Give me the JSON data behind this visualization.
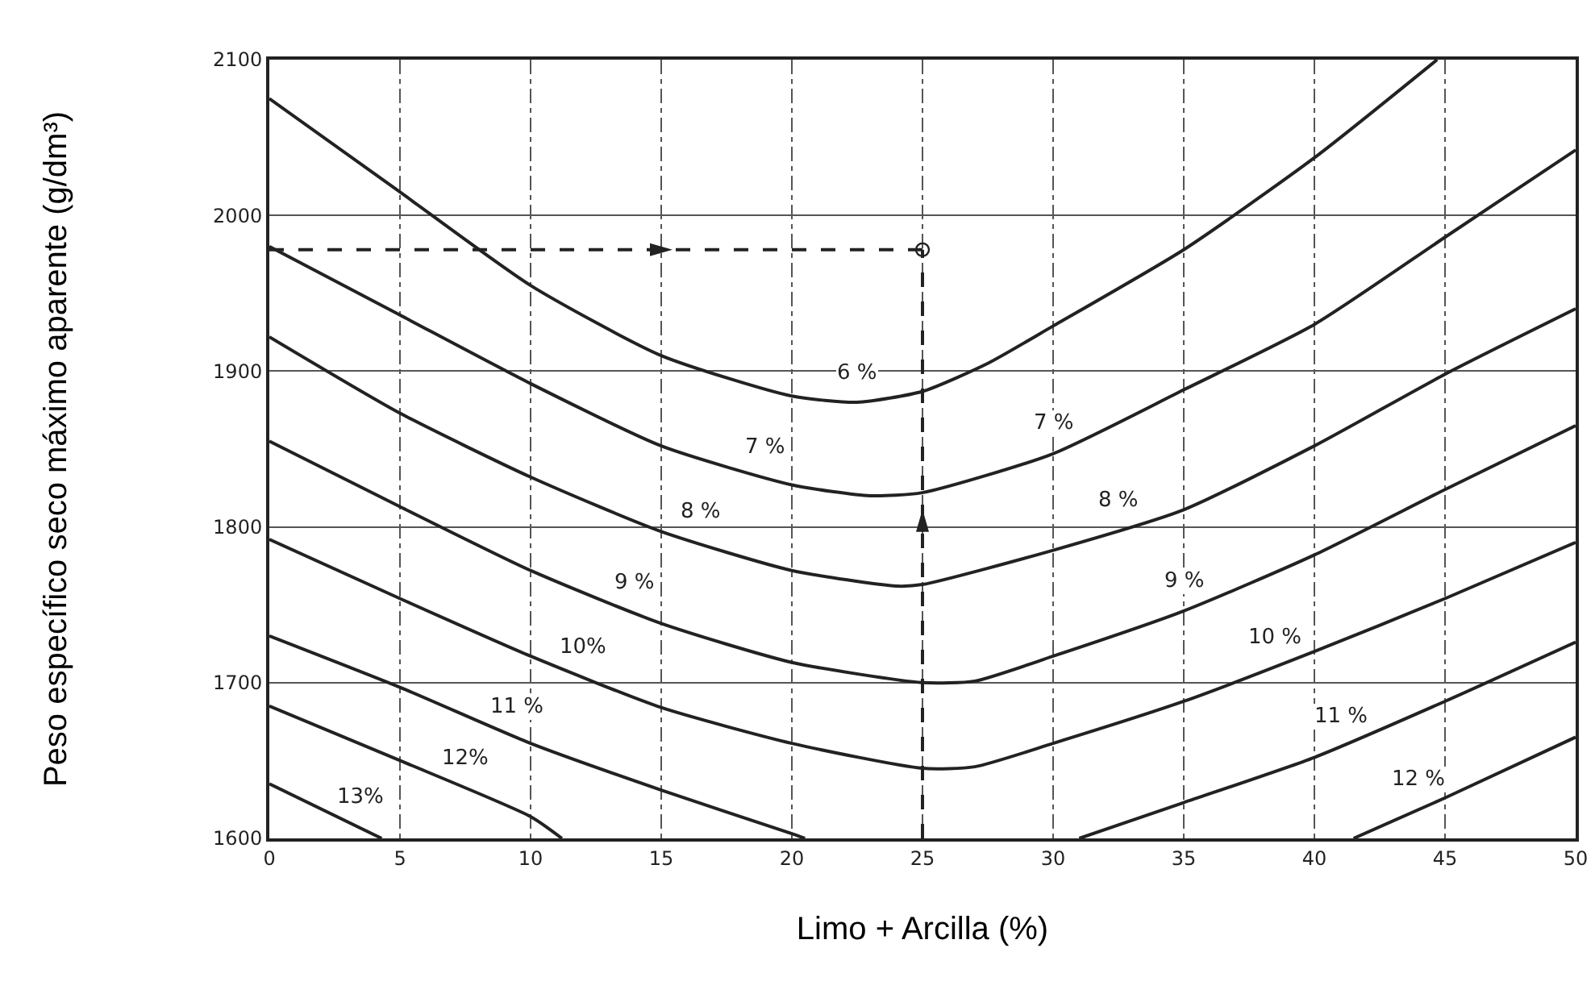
{
  "chart_data": {
    "type": "line",
    "xlabel": "Limo + Arcilla (%)",
    "ylabel": "Peso específico seco máximo aparente (g/dm³)",
    "xlim": [
      0,
      50
    ],
    "ylim": [
      1600,
      2100
    ],
    "xticks": [
      0,
      5,
      10,
      15,
      20,
      25,
      30,
      35,
      40,
      45,
      50
    ],
    "yticks": [
      1600,
      1700,
      1800,
      1900,
      2000,
      2100
    ],
    "grid": true,
    "marker": "none",
    "line_style": "solid",
    "series": [
      {
        "color": "#222222",
        "x": [
          0,
          5,
          10,
          15,
          20,
          22.5,
          25,
          27.5,
          30,
          35,
          40,
          44.7
        ],
        "values": [
          2075,
          2015,
          1955,
          1910,
          1884,
          1880,
          1887,
          1905,
          1929,
          1978,
          2037,
          2100
        ]
      },
      {
        "color": "#222222",
        "x": [
          0,
          5,
          10,
          15,
          20,
          23,
          25,
          30,
          35,
          40,
          45,
          50
        ],
        "values": [
          1980,
          1936,
          1892,
          1852,
          1827,
          1820,
          1822,
          1847,
          1888,
          1930,
          1986,
          2042
        ]
      },
      {
        "color": "#222222",
        "x": [
          0,
          5,
          10,
          15,
          20,
          24,
          25,
          30,
          35,
          40,
          45,
          50
        ],
        "values": [
          1922,
          1873,
          1832,
          1797,
          1772,
          1762,
          1763,
          1785,
          1811,
          1852,
          1898,
          1940
        ]
      },
      {
        "color": "#222222",
        "x": [
          0,
          5,
          10,
          15,
          20,
          25,
          27,
          30,
          35,
          40,
          45,
          50
        ],
        "values": [
          1855,
          1813,
          1772,
          1738,
          1713,
          1700,
          1701,
          1717,
          1746,
          1782,
          1824,
          1865
        ]
      },
      {
        "color": "#222222",
        "x": [
          0,
          5,
          10,
          15,
          20,
          25,
          27,
          30,
          35,
          40,
          45,
          50
        ],
        "values": [
          1792,
          1754,
          1717,
          1684,
          1661,
          1645,
          1646,
          1661,
          1688,
          1720,
          1754,
          1790
        ]
      },
      {
        "color": "#222222",
        "x": [
          0,
          5,
          10,
          15,
          20,
          20.5,
          25,
          31,
          35,
          40,
          45,
          50
        ],
        "values": [
          1730,
          1697,
          1661,
          1631,
          1603,
          1600,
          null,
          1600,
          1623,
          1652,
          1688,
          1726
        ]
      },
      {
        "color": "#222222",
        "x": [
          0,
          5,
          10,
          11.2,
          25,
          41.5,
          45,
          50
        ],
        "values": [
          1685,
          1650,
          1614,
          1600,
          null,
          1600,
          1626,
          1665
        ]
      },
      {
        "color": "#222222",
        "x": [
          0,
          4.3
        ],
        "values": [
          1635,
          1600
        ]
      },
      {
        "color": "#222222",
        "line_style": "dashed",
        "x": [
          0,
          25
        ],
        "values": [
          1978,
          1978
        ]
      },
      {
        "color": "#222222",
        "line_style": "dashed",
        "x": [
          25,
          25
        ],
        "values": [
          1600,
          1978
        ]
      },
      {
        "type": "scatter",
        "color": "#222222",
        "marker": "circle",
        "x": [
          25
        ],
        "values": [
          1978
        ]
      }
    ],
    "annotations": [
      {
        "text": "6 %",
        "x": 22.5,
        "y": 1880
      },
      {
        "text": "7 %",
        "x": 19,
        "y": 1832
      },
      {
        "text": "8 %",
        "x": 16.5,
        "y": 1790
      },
      {
        "text": "9 %",
        "x": 14,
        "y": 1745
      },
      {
        "text": "10%",
        "x": 12,
        "y": 1704
      },
      {
        "text": "11 %",
        "x": 9.5,
        "y": 1665
      },
      {
        "text": "12%",
        "x": 7.5,
        "y": 1632
      },
      {
        "text": "13%",
        "x": 3.5,
        "y": 1607
      },
      {
        "text": "7 %",
        "x": 30,
        "y": 1847
      },
      {
        "text": "8 %",
        "x": 32.5,
        "y": 1798
      },
      {
        "text": "9 %",
        "x": 35,
        "y": 1746
      },
      {
        "text": "10 %",
        "x": 38.5,
        "y": 1710
      },
      {
        "text": "11 %",
        "x": 41,
        "y": 1659
      },
      {
        "text": "12 %",
        "x": 44,
        "y": 1619
      }
    ]
  }
}
